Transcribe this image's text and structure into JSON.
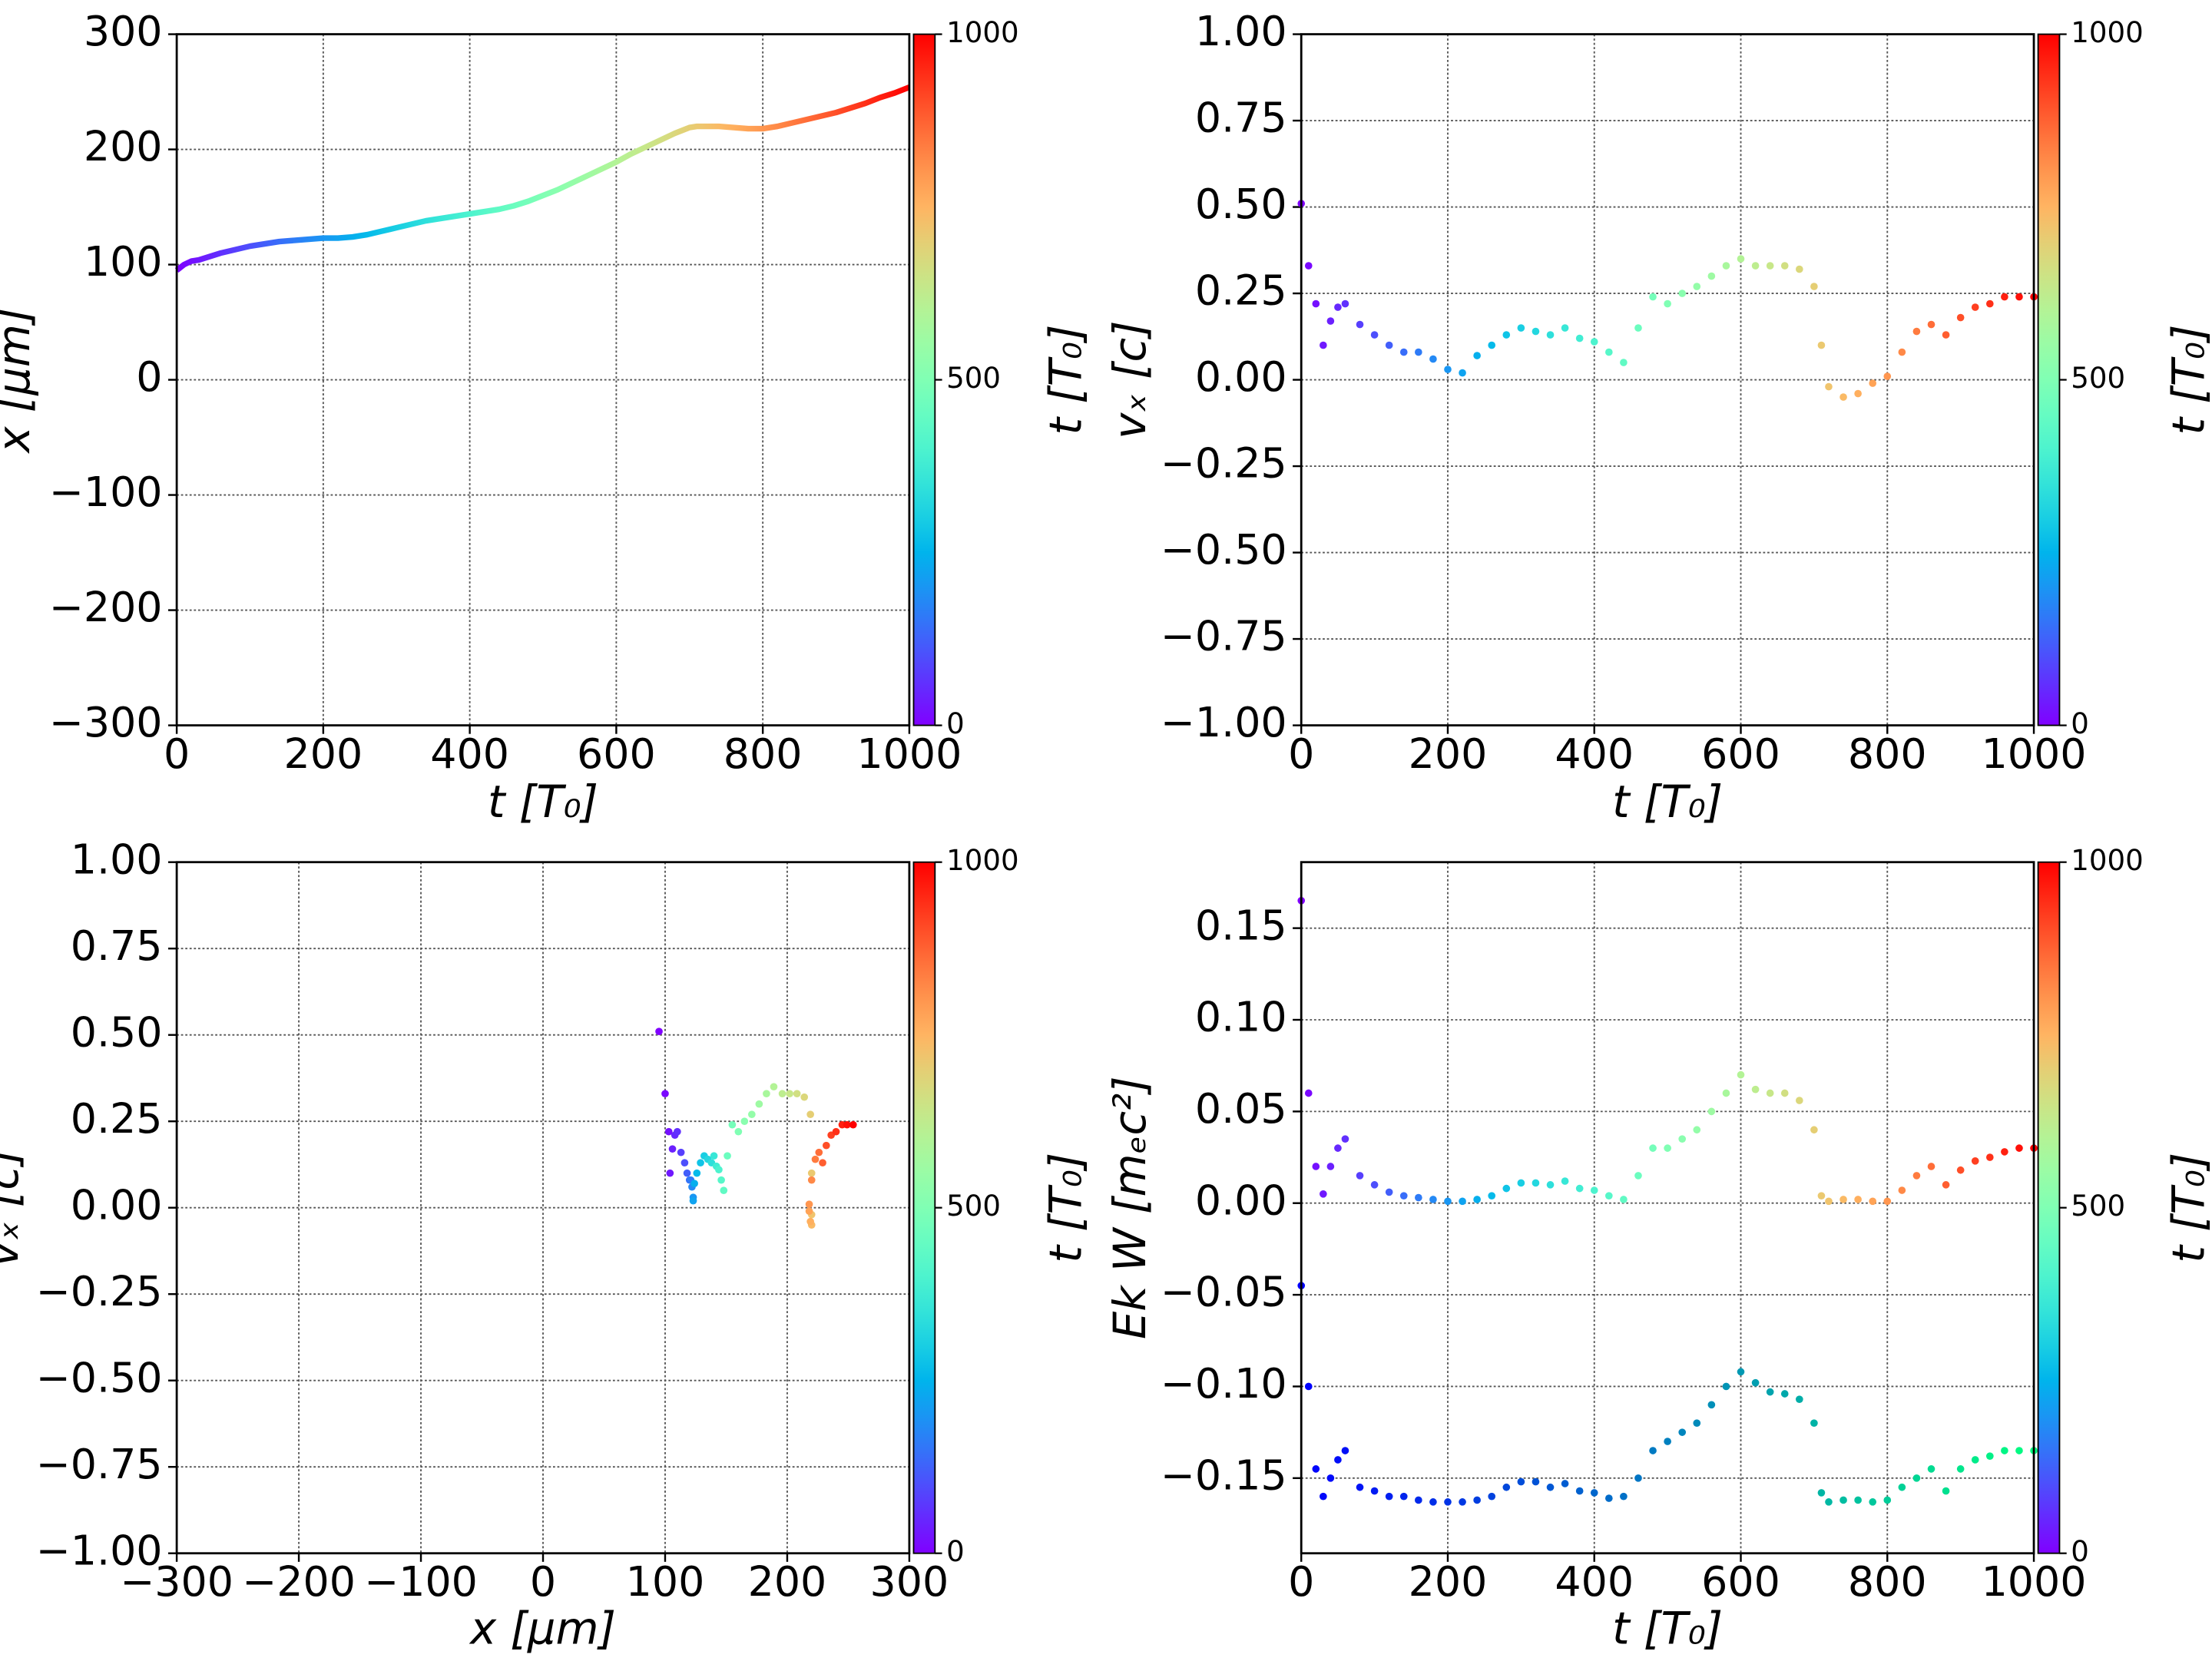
{
  "chart_data": [
    {
      "type": "line",
      "xlabel": "t  [T₀]",
      "ylabel": "x  [μm]",
      "x": [
        0,
        10,
        20,
        30,
        40,
        50,
        60,
        80,
        100,
        120,
        140,
        160,
        180,
        200,
        220,
        240,
        260,
        280,
        300,
        320,
        340,
        360,
        380,
        400,
        420,
        440,
        460,
        480,
        500,
        520,
        540,
        560,
        580,
        600,
        620,
        640,
        660,
        680,
        700,
        710,
        720,
        740,
        760,
        780,
        800,
        820,
        840,
        860,
        880,
        900,
        920,
        940,
        960,
        980,
        1000
      ],
      "series": [
        {
          "colormap": "rainbow",
          "color_by": "x",
          "values": [
            95,
            100,
            103,
            104,
            106,
            108,
            110,
            113,
            116,
            118,
            120,
            121,
            122,
            123,
            123,
            124,
            126,
            129,
            132,
            135,
            138,
            140,
            142,
            144,
            146,
            148,
            151,
            155,
            160,
            165,
            171,
            177,
            183,
            189,
            196,
            202,
            208,
            214,
            219,
            220,
            220,
            220,
            219,
            218,
            218,
            220,
            223,
            226,
            229,
            232,
            236,
            240,
            245,
            249,
            254
          ]
        }
      ],
      "xlim": [
        0,
        1000
      ],
      "xticks": [
        0,
        200,
        400,
        600,
        800,
        1000
      ],
      "ylim": [
        -300,
        300
      ],
      "yticks": [
        {
          "value": -300,
          "label": "−300"
        },
        {
          "value": -200,
          "label": "−200"
        },
        {
          "value": -100,
          "label": "−100"
        },
        0,
        100,
        200,
        300
      ],
      "grid": true,
      "colorbar": {
        "label": "t [T₀]",
        "colormap": "rainbow",
        "lim": [
          0,
          1000
        ],
        "ticks": [
          0,
          500,
          1000
        ]
      }
    },
    {
      "type": "scatter",
      "xlabel": "t [T₀]",
      "ylabel": "vₓ [c]",
      "x": [
        0,
        10,
        20,
        30,
        40,
        50,
        60,
        80,
        100,
        120,
        140,
        160,
        180,
        200,
        220,
        240,
        260,
        280,
        300,
        320,
        340,
        360,
        380,
        400,
        420,
        440,
        460,
        480,
        500,
        520,
        540,
        560,
        580,
        600,
        620,
        640,
        660,
        680,
        700,
        710,
        720,
        740,
        760,
        780,
        800,
        820,
        840,
        860,
        880,
        900,
        920,
        940,
        960,
        980,
        1000
      ],
      "series": [
        {
          "colormap": "rainbow",
          "color_by": "x",
          "values": [
            0.51,
            0.33,
            0.22,
            0.1,
            0.17,
            0.21,
            0.22,
            0.16,
            0.13,
            0.1,
            0.08,
            0.08,
            0.06,
            0.03,
            0.02,
            0.07,
            0.1,
            0.13,
            0.15,
            0.14,
            0.13,
            0.15,
            0.12,
            0.11,
            0.08,
            0.05,
            0.15,
            0.24,
            0.22,
            0.25,
            0.27,
            0.3,
            0.33,
            0.35,
            0.33,
            0.33,
            0.33,
            0.32,
            0.27,
            0.1,
            -0.02,
            -0.05,
            -0.04,
            -0.01,
            0.01,
            0.08,
            0.14,
            0.16,
            0.13,
            0.18,
            0.21,
            0.22,
            0.24,
            0.24,
            0.24
          ]
        }
      ],
      "xlim": [
        0,
        1000
      ],
      "xticks": [
        0,
        200,
        400,
        600,
        800,
        1000
      ],
      "ylim": [
        -1,
        1
      ],
      "yticks": [
        {
          "value": -1,
          "label": "−1.00"
        },
        {
          "value": -0.75,
          "label": "−0.75"
        },
        {
          "value": -0.5,
          "label": "−0.50"
        },
        {
          "value": -0.25,
          "label": "−0.25"
        },
        {
          "value": 0,
          "label": "0.00"
        },
        0.25,
        {
          "value": 0.5,
          "label": "0.50"
        },
        0.75,
        {
          "value": 1,
          "label": "1.00"
        }
      ],
      "grid": true,
      "colorbar": {
        "label": "t [T₀]",
        "colormap": "rainbow",
        "lim": [
          0,
          1000
        ],
        "ticks": [
          0,
          500,
          1000
        ]
      }
    },
    {
      "type": "scatter",
      "xlabel": "x [μm]",
      "ylabel": "vₓ [c]",
      "x": [
        95,
        100,
        103,
        104,
        106,
        108,
        110,
        113,
        116,
        118,
        120,
        121,
        122,
        123,
        123,
        124,
        126,
        129,
        132,
        135,
        138,
        140,
        142,
        144,
        146,
        148,
        151,
        155,
        160,
        165,
        171,
        177,
        183,
        189,
        196,
        202,
        208,
        214,
        219,
        220,
        220,
        220,
        219,
        218,
        218,
        220,
        223,
        226,
        229,
        232,
        236,
        240,
        245,
        249,
        254
      ],
      "c": [
        0,
        10,
        20,
        30,
        40,
        50,
        60,
        80,
        100,
        120,
        140,
        160,
        180,
        200,
        220,
        240,
        260,
        280,
        300,
        320,
        340,
        360,
        380,
        400,
        420,
        440,
        460,
        480,
        500,
        520,
        540,
        560,
        580,
        600,
        620,
        640,
        660,
        680,
        700,
        710,
        720,
        740,
        760,
        780,
        800,
        820,
        840,
        860,
        880,
        900,
        920,
        940,
        960,
        980,
        1000
      ],
      "series": [
        {
          "colormap": "rainbow",
          "color_by": "c",
          "values": [
            0.51,
            0.33,
            0.22,
            0.1,
            0.17,
            0.21,
            0.22,
            0.16,
            0.13,
            0.1,
            0.08,
            0.08,
            0.06,
            0.03,
            0.02,
            0.07,
            0.1,
            0.13,
            0.15,
            0.14,
            0.13,
            0.15,
            0.12,
            0.11,
            0.08,
            0.05,
            0.15,
            0.24,
            0.22,
            0.25,
            0.27,
            0.3,
            0.33,
            0.35,
            0.33,
            0.33,
            0.33,
            0.32,
            0.27,
            0.1,
            -0.02,
            -0.05,
            -0.04,
            -0.01,
            0.01,
            0.08,
            0.14,
            0.16,
            0.13,
            0.18,
            0.21,
            0.22,
            0.24,
            0.24,
            0.24
          ]
        }
      ],
      "xlim": [
        -300,
        300
      ],
      "xticks": [
        {
          "value": -300,
          "label": "−300"
        },
        {
          "value": -200,
          "label": "−200"
        },
        {
          "value": -100,
          "label": "−100"
        },
        0,
        100,
        200,
        300
      ],
      "ylim": [
        -1,
        1
      ],
      "yticks": [
        {
          "value": -1,
          "label": "−1.00"
        },
        {
          "value": -0.75,
          "label": "−0.75"
        },
        {
          "value": -0.5,
          "label": "−0.50"
        },
        {
          "value": -0.25,
          "label": "−0.25"
        },
        {
          "value": 0,
          "label": "0.00"
        },
        0.25,
        {
          "value": 0.5,
          "label": "0.50"
        },
        0.75,
        {
          "value": 1,
          "label": "1.00"
        }
      ],
      "grid": true,
      "colorbar": {
        "label": "t [T₀]",
        "colormap": "rainbow",
        "lim": [
          0,
          1000
        ],
        "ticks": [
          0,
          500,
          1000
        ]
      }
    },
    {
      "type": "scatter",
      "xlabel": "t [T₀]",
      "ylabel": "Ek W [mₑc²]",
      "x": [
        0,
        10,
        20,
        30,
        40,
        50,
        60,
        80,
        100,
        120,
        140,
        160,
        180,
        200,
        220,
        240,
        260,
        280,
        300,
        320,
        340,
        360,
        380,
        400,
        420,
        440,
        460,
        480,
        500,
        520,
        540,
        560,
        580,
        600,
        620,
        640,
        660,
        680,
        700,
        710,
        720,
        740,
        760,
        780,
        800,
        820,
        840,
        860,
        880,
        900,
        920,
        940,
        960,
        980,
        1000
      ],
      "series": [
        {
          "colormap": "rainbow",
          "color_by": "x",
          "values": [
            0.165,
            0.06,
            0.02,
            0.005,
            0.02,
            0.03,
            0.035,
            0.015,
            0.01,
            0.006,
            0.004,
            0.003,
            0.002,
            0.001,
            0.001,
            0.002,
            0.004,
            0.008,
            0.011,
            0.011,
            0.01,
            0.012,
            0.008,
            0.007,
            0.004,
            0.002,
            0.015,
            0.03,
            0.03,
            0.035,
            0.04,
            0.05,
            0.06,
            0.07,
            0.062,
            0.06,
            0.06,
            0.056,
            0.04,
            0.004,
            0.001,
            0.002,
            0.002,
            0.001,
            0.001,
            0.007,
            0.015,
            0.02,
            0.01,
            0.018,
            0.023,
            0.025,
            0.028,
            0.03,
            0.03
          ]
        },
        {
          "colormap": "winter",
          "color_by": "x",
          "values": [
            -0.045,
            -0.1,
            -0.145,
            -0.16,
            -0.15,
            -0.14,
            -0.135,
            -0.155,
            -0.157,
            -0.16,
            -0.16,
            -0.162,
            -0.163,
            -0.163,
            -0.163,
            -0.162,
            -0.16,
            -0.155,
            -0.152,
            -0.152,
            -0.155,
            -0.153,
            -0.157,
            -0.158,
            -0.161,
            -0.16,
            -0.15,
            -0.135,
            -0.13,
            -0.125,
            -0.12,
            -0.11,
            -0.1,
            -0.092,
            -0.098,
            -0.103,
            -0.104,
            -0.107,
            -0.12,
            -0.158,
            -0.163,
            -0.162,
            -0.162,
            -0.163,
            -0.162,
            -0.155,
            -0.15,
            -0.145,
            -0.157,
            -0.145,
            -0.14,
            -0.138,
            -0.135,
            -0.135,
            -0.135
          ]
        }
      ],
      "xlim": [
        0,
        1000
      ],
      "xticks": [
        0,
        200,
        400,
        600,
        800,
        1000
      ],
      "ylim": [
        -0.191,
        0.186
      ],
      "yticks": [
        {
          "value": -0.15,
          "label": "−0.15"
        },
        {
          "value": -0.1,
          "label": "−0.10"
        },
        {
          "value": -0.05,
          "label": "−0.05"
        },
        {
          "value": 0,
          "label": "0.00"
        },
        0.05,
        {
          "value": 0.1,
          "label": "0.10"
        },
        0.15
      ],
      "grid": true,
      "colorbar": {
        "label": "t [T₀]",
        "colormap": "rainbow",
        "lim": [
          0,
          1000
        ],
        "ticks": [
          0,
          500,
          1000
        ]
      }
    }
  ]
}
